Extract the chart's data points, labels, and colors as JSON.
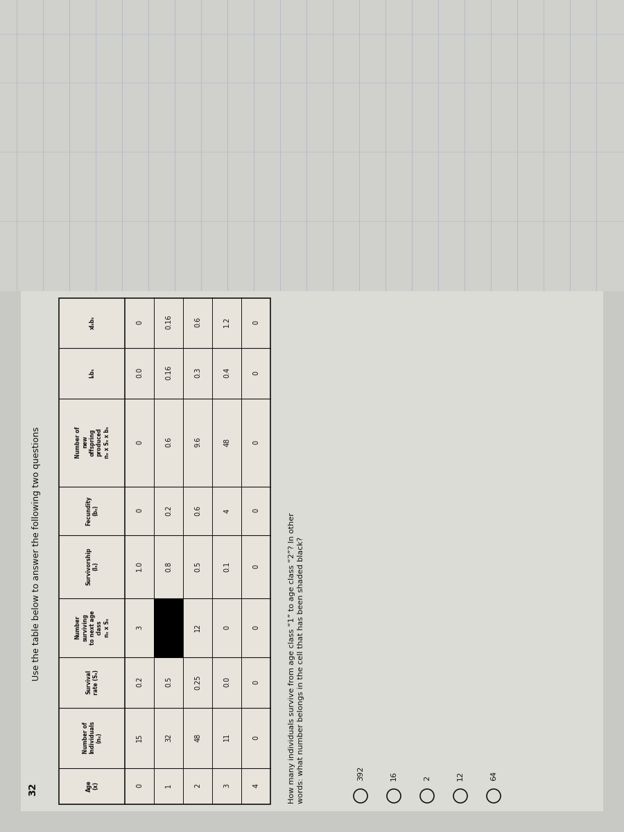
{
  "title": "Use the table below to answer the following two questions",
  "page_number": "32",
  "headers": [
    "Age\n(x)",
    "Number of\nIndividuals\n(nₓ)",
    "Survival\nrate (Sₓ)",
    "Number\nsurviving\nto next age\nclass\nnₓ x Sₓ",
    "Survivorship\n(lₓ)",
    "Fecundity\n(bₓ)",
    "Number of\nnew\noffspring\nproduced\nnₓ x Sₓ x bₓ",
    "lₓbₓ",
    "xlₓbₓ"
  ],
  "rows": [
    [
      "0",
      "15",
      "0.2",
      "3",
      "1.0",
      "0",
      "0",
      "0.0",
      "0"
    ],
    [
      "1",
      "32",
      "0.5",
      "BLACK",
      "0.8",
      "0.2",
      "0.6",
      "0.16",
      "0.16"
    ],
    [
      "2",
      "48",
      "0.25",
      "12",
      "0.5",
      "0.6",
      "9.6",
      "0.3",
      "0.6"
    ],
    [
      "3",
      "11",
      "0.0",
      "0",
      "0.1",
      "4",
      "48",
      "0.4",
      "1.2"
    ],
    [
      "4",
      "0",
      "0",
      "0",
      "0",
      "0",
      "0",
      "0",
      "0"
    ]
  ],
  "question_text": "How many individuals survive from age class “1” to age class “2”? In other\nwords: what number belongs in the cell that has been shaded black?",
  "choices": [
    "392",
    "16",
    "2",
    "12",
    "64"
  ],
  "bg_color": "#c8c8c4",
  "paper_color": "#dcdcd6",
  "table_bg": "#e8e4dc",
  "black_cell_color": "#000000",
  "grid_color": "#111111",
  "text_color": "#111111",
  "line_color": "#8899bb",
  "font_size_title": 9,
  "font_size_header": 5.5,
  "font_size_table": 7,
  "font_size_question": 8,
  "font_size_choice": 8,
  "font_size_pagenum": 10
}
